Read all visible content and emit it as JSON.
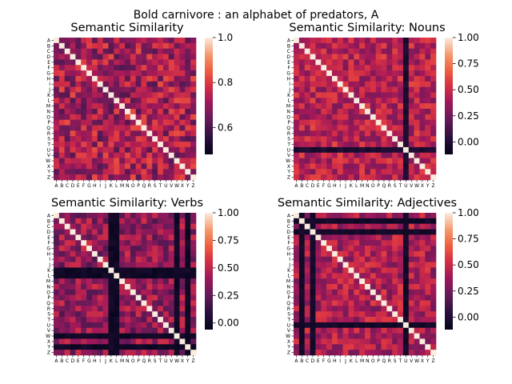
{
  "figure": {
    "suptitle": "Bold carnivore : an alphabet of predators, A"
  },
  "chart_data": [
    {
      "type": "heatmap",
      "title": "Semantic Similarity",
      "colormap": "rocket",
      "vmin": 0.48,
      "vmax": 1.0,
      "colorbar_ticks": [
        "0.6",
        "0.8",
        "1.0"
      ],
      "colorbar_tick_values": [
        0.6,
        0.8,
        1.0
      ],
      "seed": 11,
      "base": 0.72,
      "spread": 0.11,
      "dark_rows": [],
      "dark_value": 0.5,
      "x_categories": [
        "A",
        "B",
        "C",
        "D",
        "E",
        "F",
        "G",
        "H",
        "I",
        "J",
        "K",
        "L",
        "M",
        "N",
        "O",
        "P",
        "Q",
        "R",
        "S",
        "T",
        "U",
        "V",
        "W",
        "X",
        "Y",
        "Z"
      ],
      "y_categories": [
        "A",
        "B",
        "C",
        "D",
        "E",
        "F",
        "G",
        "H",
        "I",
        "J",
        "K",
        "L",
        "M",
        "N",
        "O",
        "P",
        "Q",
        "R",
        "S",
        "T",
        "U",
        "V",
        "W",
        "X",
        "Y",
        "Z"
      ]
    },
    {
      "type": "heatmap",
      "title": "Semantic Similarity: Nouns",
      "colormap": "rocket",
      "vmin": -0.12,
      "vmax": 1.0,
      "colorbar_ticks": [
        "0.00",
        "0.25",
        "0.50",
        "0.75",
        "1.00"
      ],
      "colorbar_tick_values": [
        0.0,
        0.25,
        0.5,
        0.75,
        1.0
      ],
      "seed": 23,
      "base": 0.45,
      "spread": 0.17,
      "dark_rows": [
        20
      ],
      "dark_value": -0.05,
      "x_categories": [
        "A",
        "B",
        "C",
        "D",
        "E",
        "F",
        "G",
        "H",
        "I",
        "J",
        "K",
        "L",
        "M",
        "N",
        "O",
        "P",
        "Q",
        "R",
        "S",
        "T",
        "U",
        "V",
        "W",
        "X",
        "Y",
        "Z"
      ],
      "y_categories": [
        "A",
        "B",
        "C",
        "D",
        "E",
        "F",
        "G",
        "H",
        "I",
        "J",
        "K",
        "L",
        "M",
        "N",
        "O",
        "P",
        "Q",
        "R",
        "S",
        "T",
        "U",
        "V",
        "W",
        "X",
        "Y",
        "Z"
      ]
    },
    {
      "type": "heatmap",
      "title": "Semantic Similarity: Verbs",
      "colormap": "rocket",
      "vmin": -0.06,
      "vmax": 1.0,
      "colorbar_ticks": [
        "0.00",
        "0.25",
        "0.50",
        "0.75",
        "1.00"
      ],
      "colorbar_tick_values": [
        0.0,
        0.25,
        0.5,
        0.75,
        1.0
      ],
      "seed": 37,
      "base": 0.38,
      "spread": 0.18,
      "dark_rows": [
        10,
        11,
        22,
        24
      ],
      "dark_value": -0.04,
      "x_categories": [
        "A",
        "B",
        "C",
        "D",
        "E",
        "F",
        "G",
        "H",
        "I",
        "J",
        "K",
        "L",
        "M",
        "N",
        "O",
        "P",
        "Q",
        "R",
        "S",
        "T",
        "U",
        "V",
        "W",
        "X",
        "Y",
        "Z"
      ],
      "y_categories": [
        "A",
        "B",
        "C",
        "D",
        "E",
        "F",
        "G",
        "H",
        "I",
        "J",
        "K",
        "L",
        "M",
        "N",
        "O",
        "P",
        "Q",
        "R",
        "S",
        "T",
        "U",
        "V",
        "W",
        "X",
        "Y",
        "Z"
      ]
    },
    {
      "type": "heatmap",
      "title": "Semantic Similarity: Adjectives",
      "colormap": "rocket",
      "vmin": -0.12,
      "vmax": 1.0,
      "colorbar_ticks": [
        "0.00",
        "0.25",
        "0.50",
        "0.75",
        "1.00"
      ],
      "colorbar_tick_values": [
        0.0,
        0.25,
        0.5,
        0.75,
        1.0
      ],
      "seed": 53,
      "base": 0.42,
      "spread": 0.17,
      "dark_rows": [
        1,
        3,
        20
      ],
      "dark_value": -0.08,
      "x_categories": [
        "A",
        "B",
        "C",
        "D",
        "E",
        "F",
        "G",
        "H",
        "I",
        "J",
        "K",
        "L",
        "M",
        "N",
        "O",
        "P",
        "Q",
        "R",
        "S",
        "T",
        "U",
        "V",
        "W",
        "X",
        "Y",
        "Z"
      ],
      "y_categories": [
        "A",
        "B",
        "C",
        "D",
        "E",
        "F",
        "G",
        "H",
        "I",
        "J",
        "K",
        "L",
        "M",
        "N",
        "O",
        "P",
        "Q",
        "R",
        "S",
        "T",
        "U",
        "V",
        "W",
        "X",
        "Y",
        "Z"
      ]
    }
  ]
}
